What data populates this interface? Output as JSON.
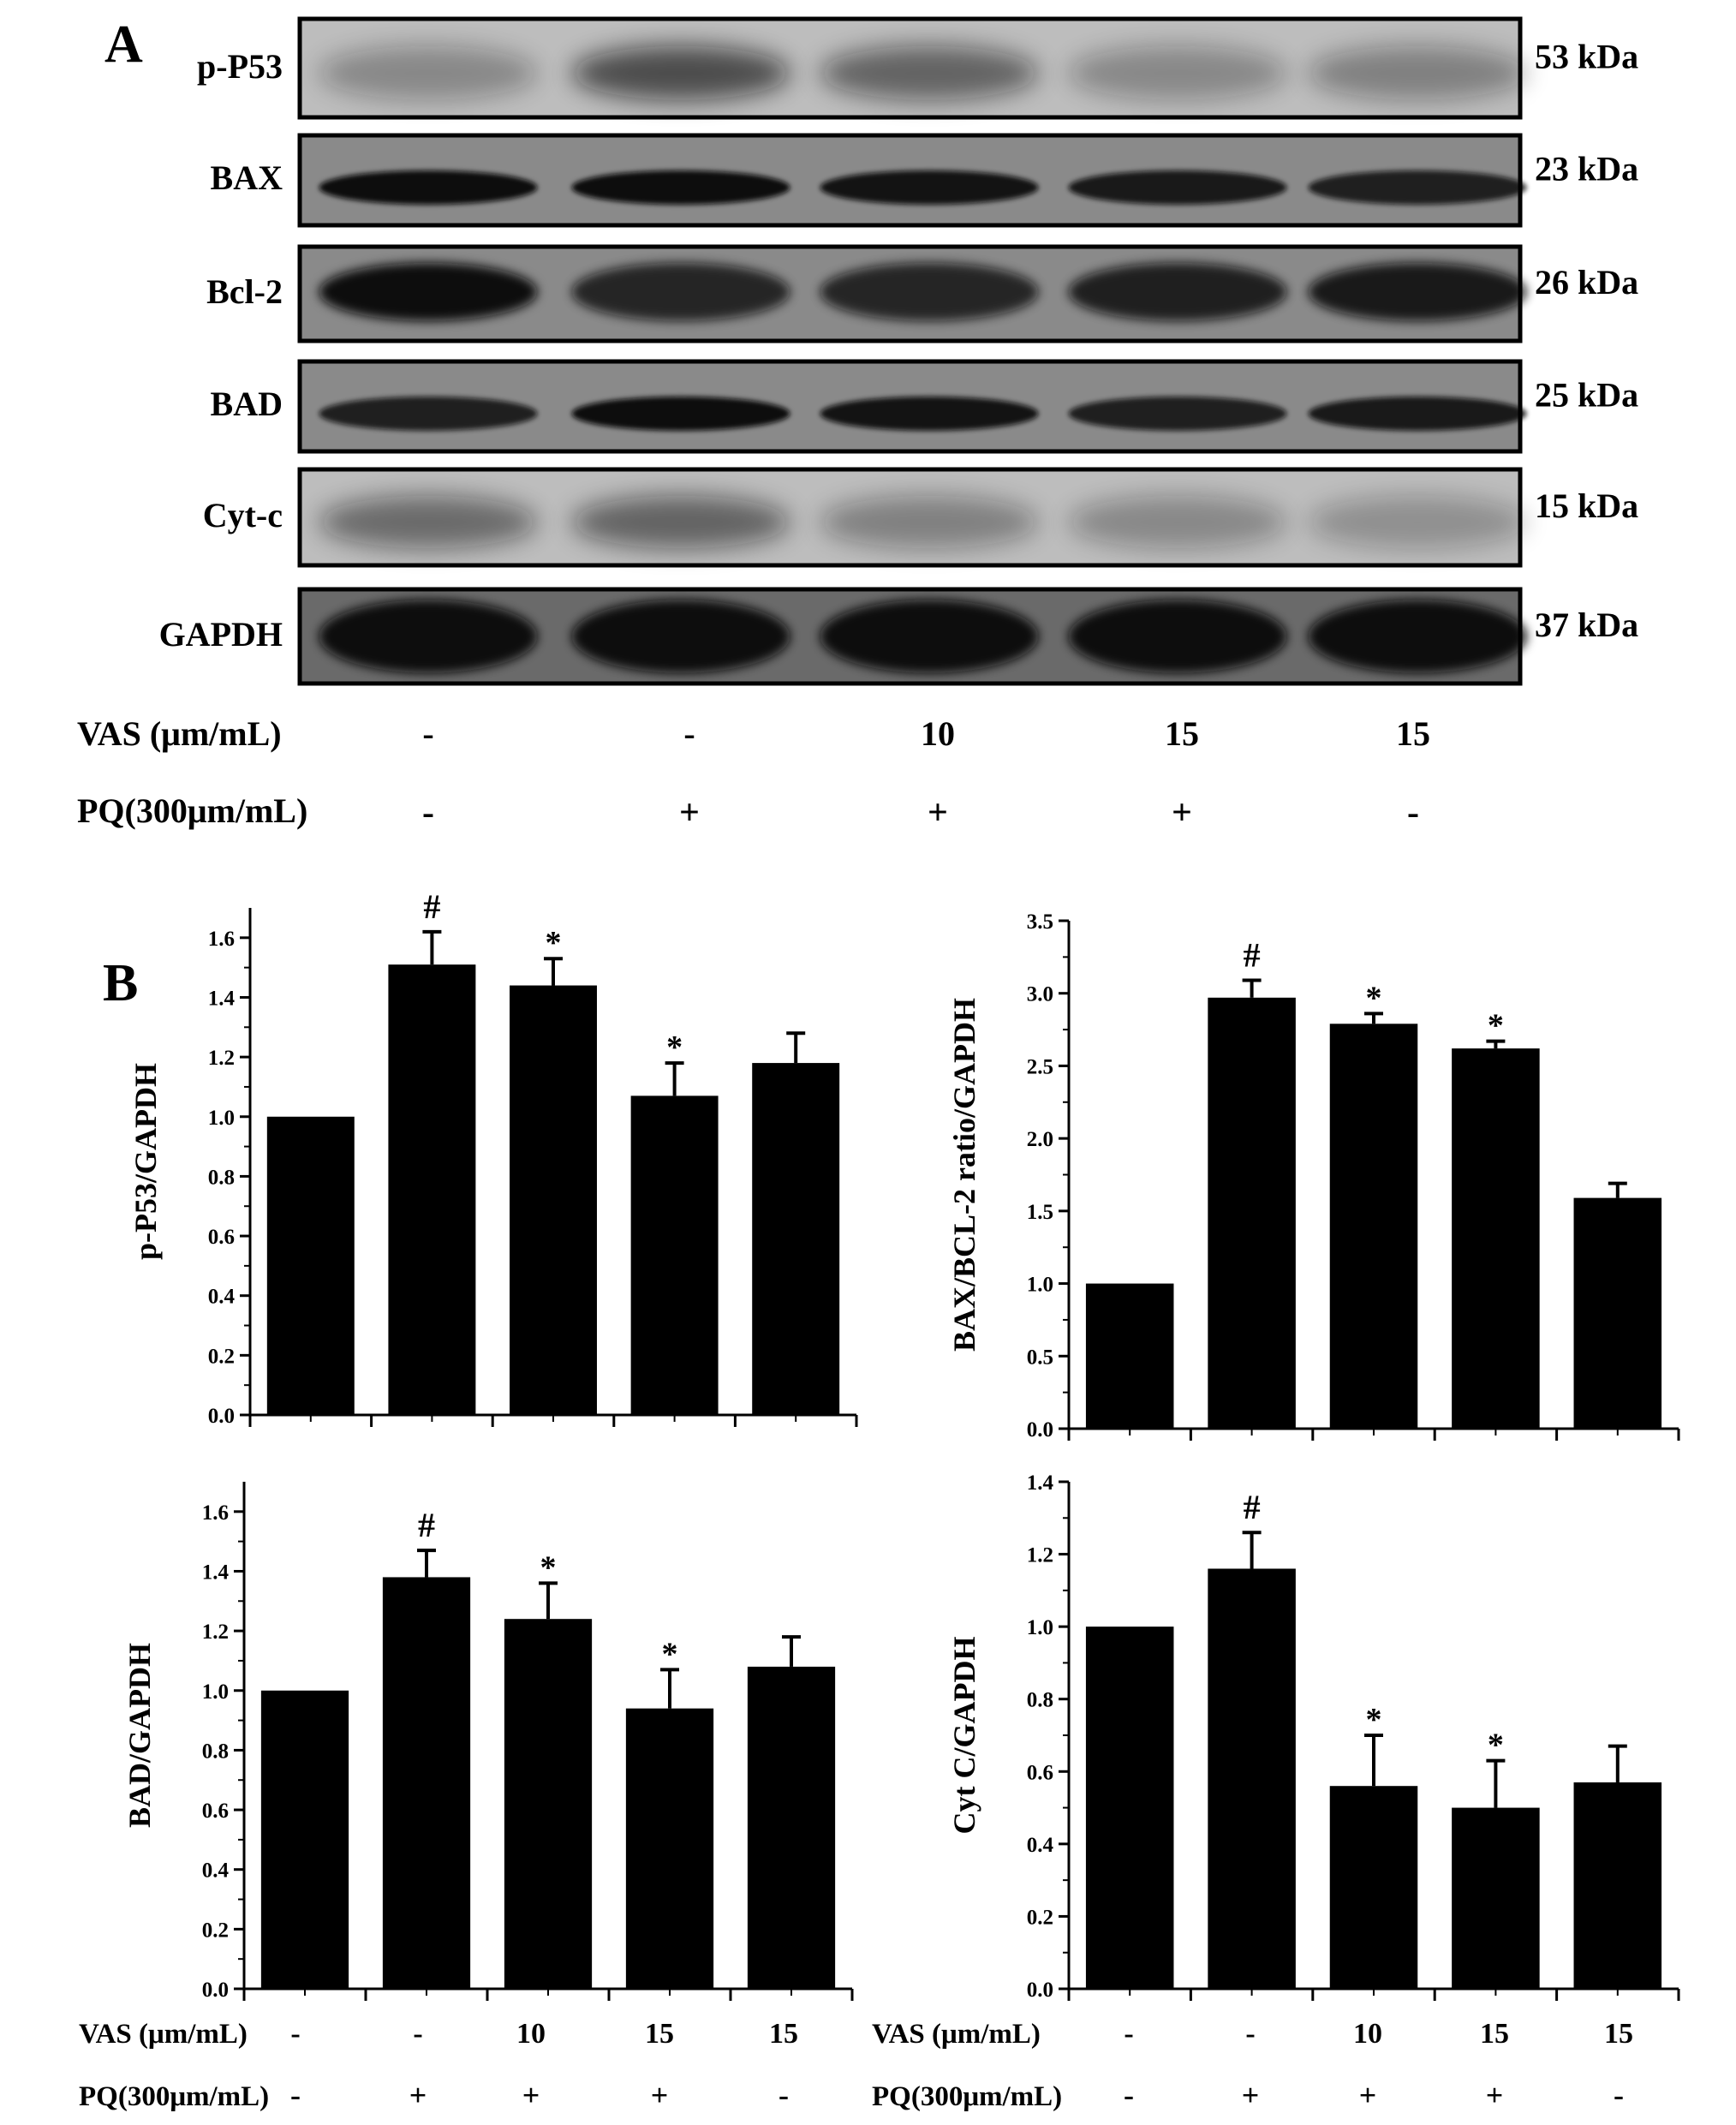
{
  "panel_a": {
    "letter": "A",
    "blots": [
      {
        "protein": "p-P53",
        "size": "53 kDa",
        "bands": [
          0.35,
          0.75,
          0.6,
          0.35,
          0.4
        ],
        "style": "faint"
      },
      {
        "protein": "BAX",
        "size": "23 kDa",
        "bands": [
          1,
          1,
          0.95,
          0.9,
          0.85
        ],
        "style": "thin"
      },
      {
        "protein": "Bcl-2",
        "size": "26 kDa",
        "bands": [
          1,
          0.8,
          0.8,
          0.85,
          0.9
        ],
        "style": "wide"
      },
      {
        "protein": "BAD",
        "size": "25 kDa",
        "bands": [
          0.85,
          1,
          0.95,
          0.85,
          0.9
        ],
        "style": "thin"
      },
      {
        "protein": "Cyt-c",
        "size": "15 kDa",
        "bands": [
          0.55,
          0.6,
          0.4,
          0.35,
          0.3
        ],
        "style": "faint"
      },
      {
        "protein": "GAPDH",
        "size": "37 kDa",
        "bands": [
          1,
          1,
          1,
          1,
          1
        ],
        "style": "heavy"
      }
    ],
    "treatments": {
      "vas_label": "VAS (μm/mL)",
      "vas_values": [
        "-",
        "-",
        "10",
        "15",
        "15"
      ],
      "pq_label": "PQ(300μm/mL)",
      "pq_values": [
        "-",
        "+",
        "+",
        "+",
        "-"
      ]
    }
  },
  "panel_b": {
    "letter": "B",
    "treatments": {
      "vas_label": "VAS (μm/mL)",
      "vas_values": [
        "-",
        "-",
        "10",
        "15",
        "15"
      ],
      "pq_label": "PQ(300μm/mL)",
      "pq_values": [
        "-",
        "+",
        "+",
        "+",
        "-"
      ]
    }
  },
  "chart_data": [
    {
      "type": "bar",
      "ylabel": "p-P53/GAPDH",
      "ylim": [
        0,
        1.7
      ],
      "yticks": [
        "0.0",
        "0.2",
        "0.4",
        "0.6",
        "0.8",
        "1.0",
        "1.2",
        "1.4",
        "1.6"
      ],
      "values": [
        1.0,
        1.51,
        1.44,
        1.07,
        1.18
      ],
      "errors": [
        0,
        0.11,
        0.09,
        0.11,
        0.1
      ],
      "annotations": [
        "",
        "#",
        "*",
        "*",
        ""
      ]
    },
    {
      "type": "bar",
      "ylabel": "BAX/BCL-2 ratio/GAPDH",
      "ylim": [
        0,
        3.5
      ],
      "yticks": [
        "0.0",
        "0.5",
        "1.0",
        "1.5",
        "2.0",
        "2.5",
        "3.0",
        "3.5"
      ],
      "values": [
        1.0,
        2.97,
        2.79,
        2.62,
        1.59
      ],
      "errors": [
        0,
        0.12,
        0.07,
        0.05,
        0.1
      ],
      "annotations": [
        "",
        "#",
        "*",
        "*",
        ""
      ]
    },
    {
      "type": "bar",
      "ylabel": "BAD/GAPDH",
      "ylim": [
        0,
        1.7
      ],
      "yticks": [
        "0.0",
        "0.2",
        "0.4",
        "0.6",
        "0.8",
        "1.0",
        "1.2",
        "1.4",
        "1.6"
      ],
      "values": [
        1.0,
        1.38,
        1.24,
        0.94,
        1.08
      ],
      "errors": [
        0,
        0.09,
        0.12,
        0.13,
        0.1
      ],
      "annotations": [
        "",
        "#",
        "*",
        "*",
        ""
      ]
    },
    {
      "type": "bar",
      "ylabel": "Cyt C/GAPDH",
      "ylim": [
        0,
        1.4
      ],
      "yticks": [
        "0.0",
        "0.2",
        "0.4",
        "0.6",
        "0.8",
        "1.0",
        "1.2",
        "1.4"
      ],
      "values": [
        1.0,
        1.16,
        0.56,
        0.5,
        0.57
      ],
      "errors": [
        0,
        0.1,
        0.14,
        0.13,
        0.1
      ],
      "annotations": [
        "",
        "#",
        "*",
        "*",
        ""
      ]
    }
  ],
  "colors": {
    "bar": "#000000",
    "blot_bg": "#9a9a9a",
    "band": "#0a0a0a"
  }
}
